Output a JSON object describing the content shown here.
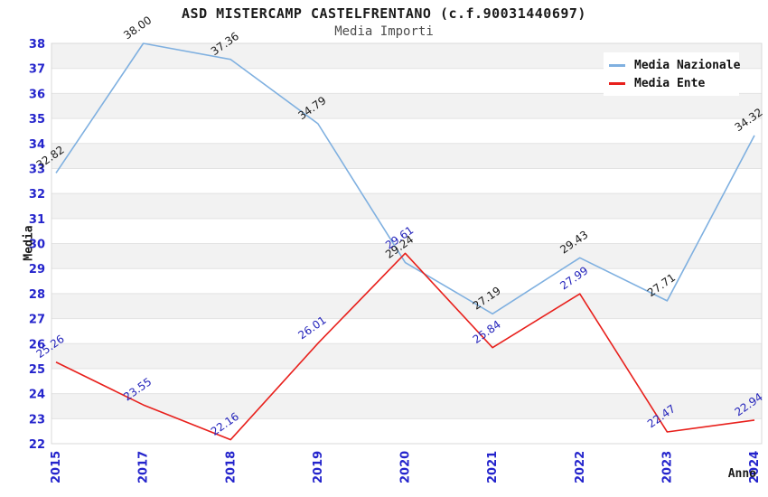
{
  "header": {
    "title": "ASD MISTERCAMP CASTELFRENTANO (c.f.90031440697)",
    "subtitle": "Media Importi"
  },
  "chart_data": {
    "type": "line",
    "title": "ASD MISTERCAMP CASTELFRENTANO (c.f.90031440697)",
    "subtitle": "Media Importi",
    "xlabel": "Anno",
    "ylabel": "Media",
    "categories": [
      "2015",
      "2017",
      "2018",
      "2019",
      "2020",
      "2021",
      "2022",
      "2023",
      "2024"
    ],
    "series": [
      {
        "name": "Media Nazionale",
        "color": "#7fb0e0",
        "label_color": "#1a1a1a",
        "values": [
          32.82,
          38.0,
          37.36,
          34.79,
          29.24,
          27.19,
          29.43,
          27.71,
          34.32
        ]
      },
      {
        "name": "Media Ente",
        "color": "#e8201c",
        "label_color": "#2424bb",
        "values": [
          25.26,
          23.55,
          22.16,
          26.01,
          29.61,
          25.84,
          27.99,
          22.47,
          22.94
        ]
      }
    ],
    "ylim": [
      22,
      38
    ],
    "ytick_step": 1,
    "grid": true,
    "legend_position": "top-right",
    "band_colors": [
      "#ffffff",
      "#f2f2f2"
    ],
    "gridline_color": "#e3e3e3",
    "border_color": "#d8d8d8",
    "tick_color": "#2424cc",
    "value_label_decimals": 2
  }
}
